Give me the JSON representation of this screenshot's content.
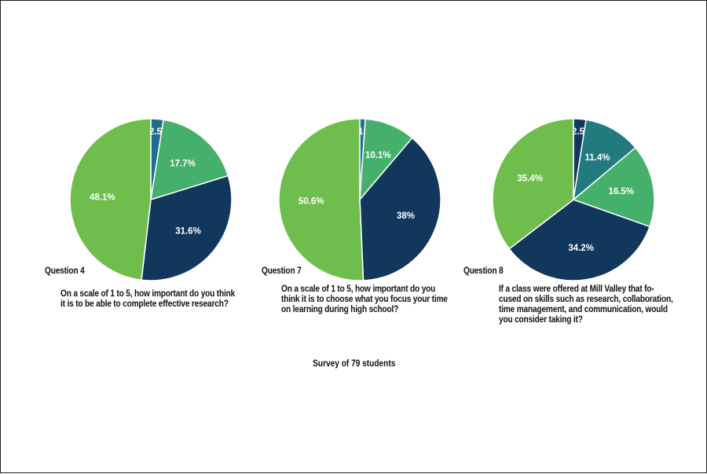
{
  "chart_data": [
    {
      "type": "pie",
      "label": "Question 4",
      "question": "On a scale of 1 to 5, how important do you think\nit is to be able to complete effective research?",
      "slices": [
        {
          "value": 2.5,
          "label": "2.5%",
          "color": "#1f6e8c"
        },
        {
          "value": 17.7,
          "label": "17.7%",
          "color": "#45b06b"
        },
        {
          "value": 31.6,
          "label": "31.6%",
          "color": "#12375c"
        },
        {
          "value": 48.1,
          "label": "48.1%",
          "color": "#6fbe4d"
        }
      ]
    },
    {
      "type": "pie",
      "label": "Question 7",
      "question": "On a scale of 1 to 5, how important do you\nthink it is to choose what you focus your time\non learning during high school?",
      "slices": [
        {
          "value": 1.1,
          "label": "1.1%",
          "color": "#1f6e8c"
        },
        {
          "value": 10.1,
          "label": "10.1%",
          "color": "#45b06b"
        },
        {
          "value": 38,
          "label": "38%",
          "color": "#12375c"
        },
        {
          "value": 50.6,
          "label": "50.6%",
          "color": "#6fbe4d"
        }
      ]
    },
    {
      "type": "pie",
      "label": "Question 8",
      "question": "If a class were offered at Mill Valley that fo-\ncused on skills such as research, collaboration,\ntime management, and communication, would\nyou consider taking it?",
      "slices": [
        {
          "value": 2.5,
          "label": "2.5%",
          "color": "#12375c"
        },
        {
          "value": 11.4,
          "label": "11.4%",
          "color": "#217a7e"
        },
        {
          "value": 16.5,
          "label": "16.5%",
          "color": "#45b06b"
        },
        {
          "value": 34.2,
          "label": "34.2%",
          "color": "#12375c"
        },
        {
          "value": 35.4,
          "label": "35.4%",
          "color": "#6fbe4d"
        }
      ]
    }
  ],
  "footer": "Survey of 79 students"
}
